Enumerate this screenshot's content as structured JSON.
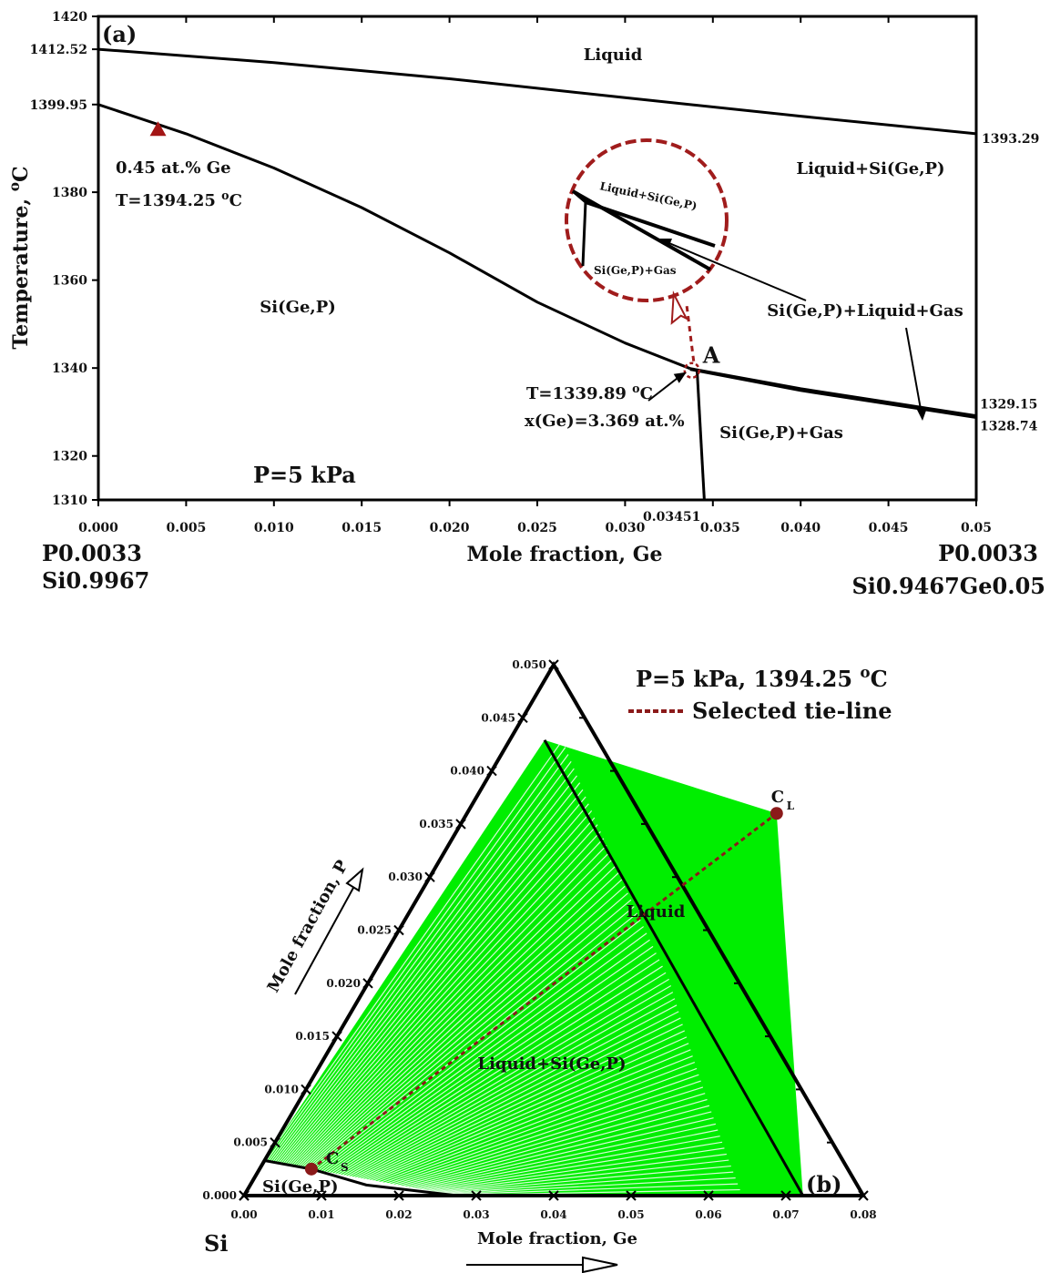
{
  "chart_data": [
    {
      "type": "line",
      "panel_label": "(a)",
      "xlabel": "Mole fraction, Ge",
      "ylabel": "Temperature, oC",
      "xlim": [
        0,
        0.05
      ],
      "ylim": [
        1310,
        1420
      ],
      "x_ticks": [
        "0.000",
        "0.005",
        "0.010",
        "0.015",
        "0.020",
        "0.025",
        "0.030",
        "0.035",
        "0.040",
        "0.045",
        "0.05"
      ],
      "y_ticks": [
        "1420",
        "1412.52",
        "1399.95",
        "1380",
        "1360",
        "1340",
        "1320",
        "1310"
      ],
      "x_extra_label": "0.03451",
      "right_labels": [
        "1393.29",
        "1329.15",
        "1328.74"
      ],
      "left_composition": [
        "P0.0033",
        "Si0.9967"
      ],
      "right_composition": [
        "P0.0033",
        "Si0.9467Ge0.05"
      ],
      "pressure_label": "P=5 kPa",
      "series": [
        {
          "x": [
            0,
            0.01,
            0.02,
            0.03,
            0.04,
            0.05
          ],
          "y": [
            1412.52,
            1409.5,
            1405.8,
            1401.5,
            1397.3,
            1393.29
          ]
        },
        {
          "x": [
            0,
            0.005,
            0.01,
            0.015,
            0.02,
            0.025,
            0.03,
            0.0337
          ],
          "y": [
            1399.95,
            1393.3,
            1385.5,
            1376.5,
            1366.2,
            1355,
            1345.7,
            1339.89
          ]
        },
        {
          "x": [
            0.0337,
            0.04,
            0.05
          ],
          "y": [
            1339.89,
            1335.3,
            1329.15
          ]
        },
        {
          "x": [
            0.0337,
            0.04,
            0.05
          ],
          "y": [
            1339.7,
            1334.9,
            1328.74
          ]
        },
        {
          "x": [
            0.0341,
            0.03451
          ],
          "y": [
            1339.7,
            1310
          ]
        }
      ],
      "special_points": [
        {
          "x": 0.0034,
          "y": 1394.25,
          "marker": "triangle",
          "label_lines": [
            "0.45 at.% Ge",
            "T=1394.25 oC"
          ]
        },
        {
          "x": 0.0337,
          "y": 1339.89,
          "label": "A",
          "label_lines": [
            "T=1339.89 oC",
            "x(Ge)=3.369 at.%"
          ]
        }
      ],
      "region_labels": [
        "Liquid",
        "Liquid+Si(Ge,P)",
        "Si(Ge,P)",
        "Si(Ge,P)+Gas",
        "Si(Ge,P)+Liquid+Gas"
      ],
      "inset_labels": [
        "Liquid+Si(Ge,P)",
        "Si(Ge,P)+Gas"
      ],
      "colors": {
        "line": "#000000",
        "marker": "#a31515",
        "inset": "#a01c1c"
      }
    },
    {
      "type": "ternary",
      "panel_label": "(b)",
      "title": "P=5 kPa, 1394.25 oC",
      "legend": [
        "Selected tie-line"
      ],
      "xlabel": "Mole fraction, Ge",
      "ylabel": "Mole fraction, P",
      "corner_label": "Si",
      "x_ticks": [
        "0.00",
        "0.01",
        "0.02",
        "0.03",
        "0.04",
        "0.05",
        "0.06",
        "0.07",
        "0.08"
      ],
      "p_ticks": [
        "0.000",
        "0.005",
        "0.010",
        "0.015",
        "0.020",
        "0.025",
        "0.030",
        "0.035",
        "0.040",
        "0.045",
        "0.050"
      ],
      "liquidus": {
        "ge": [
          0.04,
          0.0345,
          0.029,
          0.0235,
          0.018,
          0.0125,
          0.007,
          0.0015,
          0.0
        ],
        "p": [
          0.036,
          0.03,
          0.024,
          0.018,
          0.012,
          0.006,
          0.0,
          0.0,
          0.0
        ]
      },
      "solidus": {
        "ge": [
          0.0,
          0.0067,
          0.015,
          0.0275
        ],
        "p": [
          0.0033,
          0.0025,
          0.001,
          0.0
        ]
      },
      "tie_line": {
        "cs": {
          "ge": 0.0067,
          "p": 0.0025
        },
        "cl": {
          "ge": 0.04,
          "p": 0.036
        }
      },
      "point_labels": [
        "C",
        "S",
        "C",
        "L"
      ],
      "region_labels": [
        "Liquid",
        "Liquid+Si(Ge,P)",
        "Si(Ge,P)"
      ],
      "colors": {
        "tie_fill": "#00ee00",
        "tie_line": "#8b1a1a",
        "axes": "#000000"
      }
    }
  ]
}
